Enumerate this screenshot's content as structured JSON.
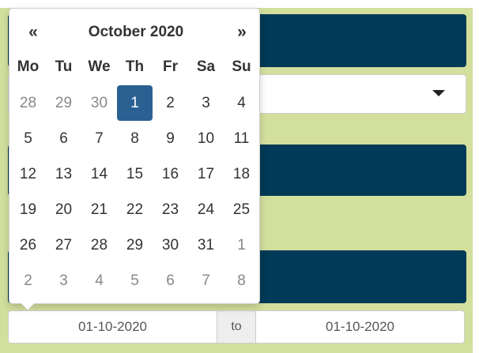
{
  "background": {
    "bar_1_text": ".",
    "colors": {
      "panel": "#d3df9d",
      "bar": "#003a57"
    }
  },
  "select": {
    "caret_icon": "caret-down-icon"
  },
  "date_range": {
    "start_value": "01-10-2020",
    "separator": "to",
    "end_value": "01-10-2020"
  },
  "datepicker": {
    "prev_label": "«",
    "next_label": "»",
    "title": "October 2020",
    "weekdays": [
      "Mo",
      "Tu",
      "We",
      "Th",
      "Fr",
      "Sa",
      "Su"
    ],
    "selected_color": "#2b6192",
    "weeks": [
      [
        {
          "d": "28",
          "muted": true
        },
        {
          "d": "29",
          "muted": true
        },
        {
          "d": "30",
          "muted": true
        },
        {
          "d": "1",
          "selected": true
        },
        {
          "d": "2"
        },
        {
          "d": "3"
        },
        {
          "d": "4"
        }
      ],
      [
        {
          "d": "5"
        },
        {
          "d": "6"
        },
        {
          "d": "7"
        },
        {
          "d": "8"
        },
        {
          "d": "9"
        },
        {
          "d": "10"
        },
        {
          "d": "11"
        }
      ],
      [
        {
          "d": "12"
        },
        {
          "d": "13"
        },
        {
          "d": "14"
        },
        {
          "d": "15"
        },
        {
          "d": "16"
        },
        {
          "d": "17"
        },
        {
          "d": "18"
        }
      ],
      [
        {
          "d": "19"
        },
        {
          "d": "20"
        },
        {
          "d": "21"
        },
        {
          "d": "22"
        },
        {
          "d": "23"
        },
        {
          "d": "24"
        },
        {
          "d": "25"
        }
      ],
      [
        {
          "d": "26"
        },
        {
          "d": "27"
        },
        {
          "d": "28"
        },
        {
          "d": "29"
        },
        {
          "d": "30"
        },
        {
          "d": "31"
        },
        {
          "d": "1",
          "muted": true
        }
      ],
      [
        {
          "d": "2",
          "muted": true
        },
        {
          "d": "3",
          "muted": true
        },
        {
          "d": "4",
          "muted": true
        },
        {
          "d": "5",
          "muted": true
        },
        {
          "d": "6",
          "muted": true
        },
        {
          "d": "7",
          "muted": true
        },
        {
          "d": "8",
          "muted": true
        }
      ]
    ]
  }
}
